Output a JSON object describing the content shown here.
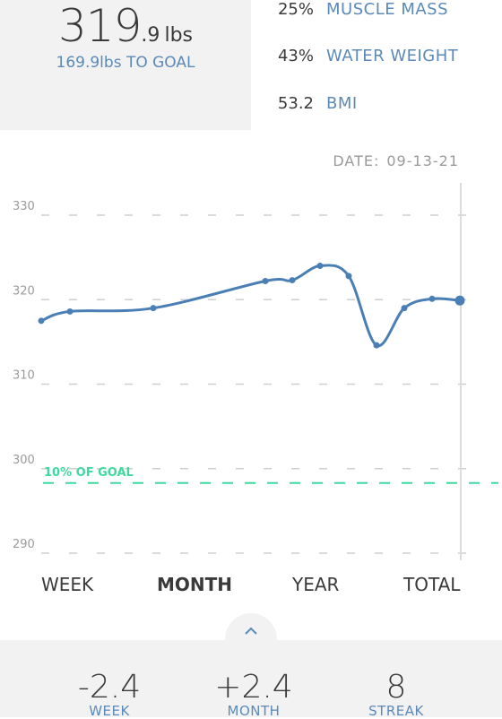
{
  "weight": {
    "whole": "319",
    "decimal": ".9",
    "unit": "lbs",
    "to_goal": "169.9lbs TO GOAL"
  },
  "stats": [
    {
      "value": "25%",
      "label": "MUSCLE MASS"
    },
    {
      "value": "43%",
      "label": "WATER WEIGHT"
    },
    {
      "value": "53.2",
      "label": "BMI"
    }
  ],
  "date": {
    "label": "DATE:",
    "value": "09-13-21"
  },
  "chart_data": {
    "type": "line",
    "y_ticks": [
      "330",
      "320",
      "310",
      "300",
      "290"
    ],
    "ylim": [
      290,
      330
    ],
    "goal_label": "10% OF GOAL",
    "goal_value": 298.3,
    "series": [
      {
        "values": [
          317.5,
          318.6,
          319.0,
          322.2,
          322.3,
          324.0,
          322.8,
          314.6,
          319.0,
          320.1,
          319.9
        ]
      }
    ],
    "colors": {
      "line": "#4a7fb5",
      "goal": "#3fd9a0",
      "grid": "#cfcfcf",
      "tick": "#9a9a9a"
    }
  },
  "tabs": [
    {
      "label": "WEEK",
      "active": false
    },
    {
      "label": "MONTH",
      "active": true
    },
    {
      "label": "YEAR",
      "active": false
    },
    {
      "label": "TOTAL",
      "active": false
    }
  ],
  "handle_icon": "chevron-up-icon",
  "summary": [
    {
      "value": "-2.4",
      "label": "WEEK"
    },
    {
      "value": "+2.4",
      "label": "MONTH"
    },
    {
      "value": "8",
      "label": "STREAK"
    }
  ]
}
